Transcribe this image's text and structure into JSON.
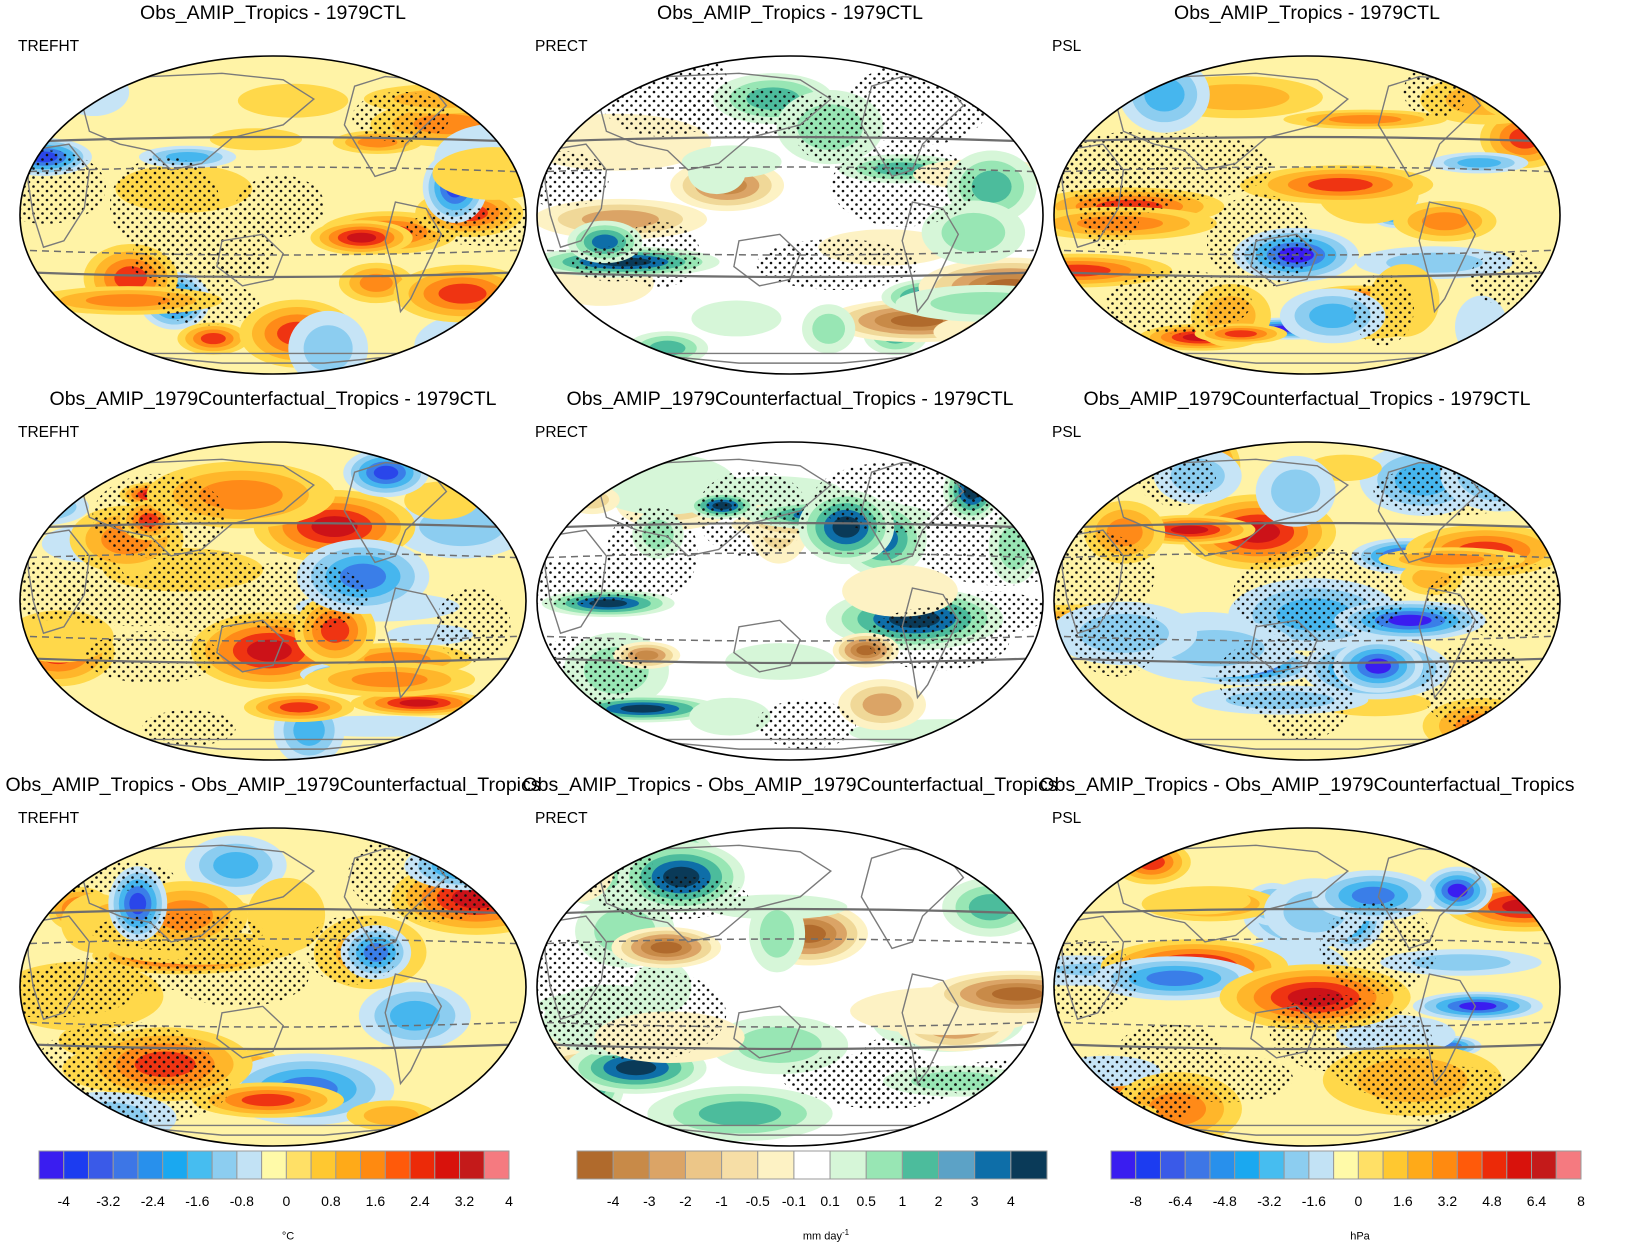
{
  "figure": {
    "rows": [
      {
        "panels": [
          {
            "title": "Obs_AMIP_Tropics - 1979CTL",
            "variable": "TREFHT",
            "palette": "temp"
          },
          {
            "title": "Obs_AMIP_Tropics - 1979CTL",
            "variable": "PRECT",
            "palette": "precip"
          },
          {
            "title": "Obs_AMIP_Tropics - 1979CTL",
            "variable": "PSL",
            "palette": "psl"
          }
        ]
      },
      {
        "panels": [
          {
            "title": "Obs_AMIP_1979Counterfactual_Tropics - 1979CTL",
            "variable": "TREFHT",
            "palette": "temp"
          },
          {
            "title": "Obs_AMIP_1979Counterfactual_Tropics - 1979CTL",
            "variable": "PRECT",
            "palette": "precip"
          },
          {
            "title": "Obs_AMIP_1979Counterfactual_Tropics - 1979CTL",
            "variable": "PSL",
            "palette": "psl"
          }
        ]
      },
      {
        "panels": [
          {
            "title": "Obs_AMIP_Tropics - Obs_AMIP_1979Counterfactual_Tropics",
            "variable": "TREFHT",
            "palette": "temp"
          },
          {
            "title": "Obs_AMIP_Tropics - Obs_AMIP_1979Counterfactual_Tropics",
            "variable": "PRECT",
            "palette": "precip"
          },
          {
            "title": "Obs_AMIP_Tropics - Obs_AMIP_1979Counterfactual_Tropics",
            "variable": "PSL",
            "palette": "psl"
          }
        ]
      }
    ]
  },
  "colorbars": [
    {
      "unit": "°C",
      "unit_sup": "",
      "colors": [
        "#3a1df0",
        "#1c3cf0",
        "#3a5ae8",
        "#3d76e6",
        "#2890ec",
        "#1aa8f0",
        "#46bdf0",
        "#8ccdf0",
        "#c2e2f5",
        "#fffaa8",
        "#ffe066",
        "#ffc830",
        "#ffaa18",
        "#ff8a10",
        "#ff5a0a",
        "#ec2a08",
        "#d8120c",
        "#c41a1a",
        "#f57a80"
      ],
      "ticks": [
        "-4",
        "-3.2",
        "-2.4",
        "-1.6",
        "-0.8",
        "0",
        "0.8",
        "1.6",
        "2.4",
        "3.2",
        "4"
      ]
    },
    {
      "unit": "mm day",
      "unit_sup": "-1",
      "colors": [
        "#b06a2c",
        "#c88a48",
        "#dba466",
        "#ecc688",
        "#f6dea6",
        "#fdf2c4",
        "#ffffff",
        "#d6f6d8",
        "#98e6b4",
        "#4cbc9c",
        "#5ca2c6",
        "#0e6ea8",
        "#0a3a58"
      ],
      "ticks": [
        "-4",
        "-3",
        "-2",
        "-1",
        "-0.5",
        "-0.1",
        "0.1",
        "0.5",
        "1",
        "2",
        "3",
        "4"
      ]
    },
    {
      "unit": "hPa",
      "unit_sup": "",
      "colors": [
        "#3a1df0",
        "#1c3cf0",
        "#3a5ae8",
        "#3d76e6",
        "#2890ec",
        "#1aa8f0",
        "#46bdf0",
        "#8ccdf0",
        "#c2e2f5",
        "#fffaa8",
        "#ffe066",
        "#ffc830",
        "#ffaa18",
        "#ff8a10",
        "#ff5a0a",
        "#ec2a08",
        "#d8120c",
        "#c41a1a",
        "#f57a80"
      ],
      "ticks": [
        "-8",
        "-6.4",
        "-4.8",
        "-3.2",
        "-1.6",
        "0",
        "1.6",
        "3.2",
        "4.8",
        "6.4",
        "8"
      ]
    }
  ],
  "palettes": {
    "temp": {
      "base": "#fff3a6",
      "pos": [
        "#ffd84a",
        "#ffb62a",
        "#ff8a18",
        "#ef3412",
        "#cc1218"
      ],
      "neg": [
        "#c6e4f6",
        "#8ccdf0",
        "#46b6ee",
        "#3a7ee8",
        "#2a46ea"
      ]
    },
    "psl": {
      "base": "#fff3a6",
      "pos": [
        "#ffd84a",
        "#ffb62a",
        "#ff8a18",
        "#ef3412",
        "#cc1218"
      ],
      "neg": [
        "#c6e4f6",
        "#8ccdf0",
        "#46b6ee",
        "#3a7ee8",
        "#3a1df0"
      ]
    },
    "precip": {
      "base": "#ffffff",
      "pos": [
        "#d6f6d8",
        "#98e6b4",
        "#4cbc9c",
        "#0e6ea8",
        "#0a3a58"
      ],
      "neg": [
        "#fdf2c4",
        "#f0d898",
        "#dba466",
        "#c88a48",
        "#b06a2c"
      ]
    }
  }
}
